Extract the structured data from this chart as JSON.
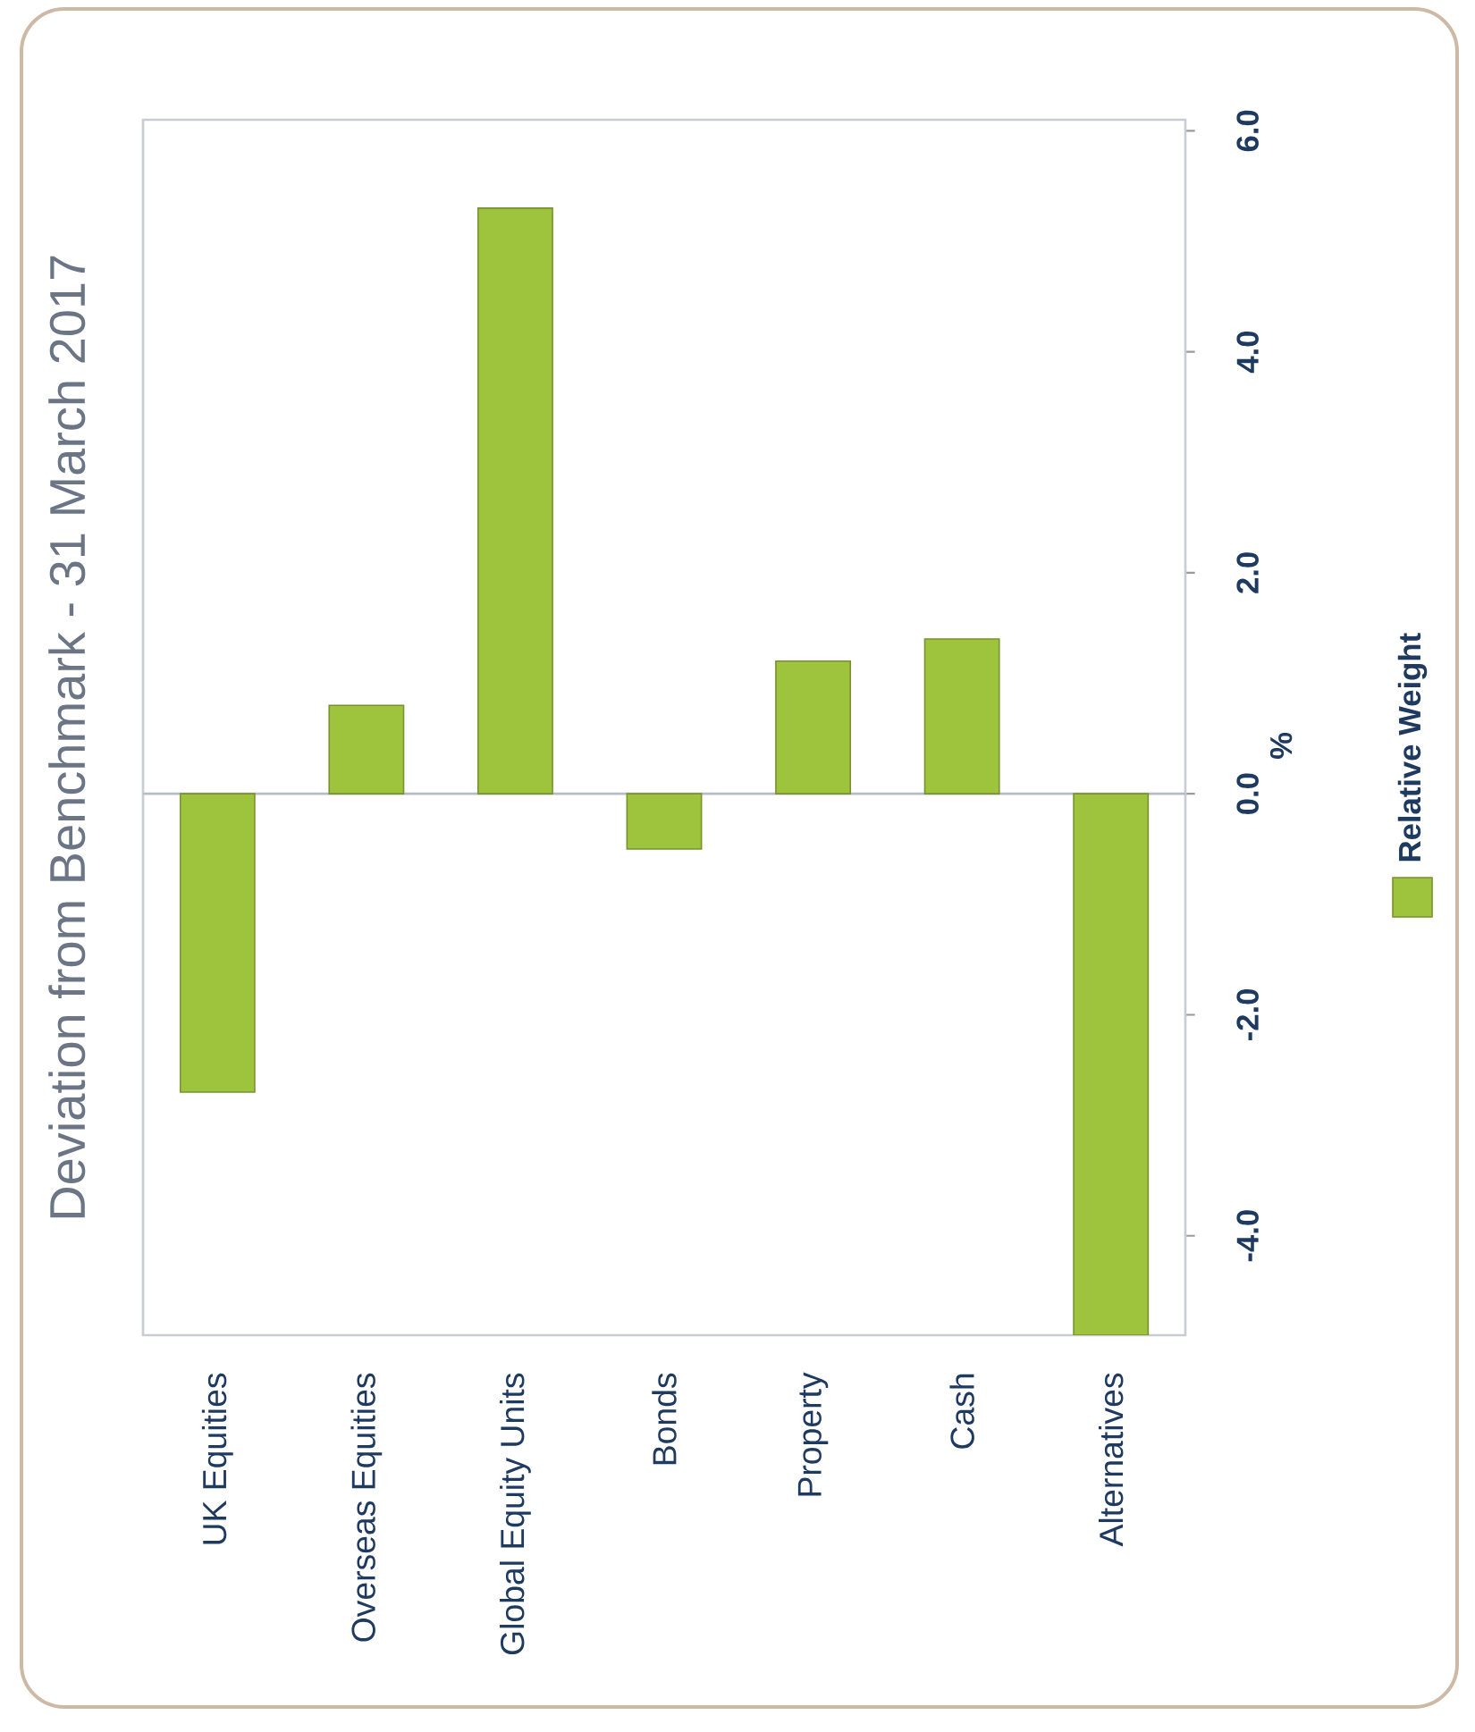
{
  "chart_data": {
    "type": "bar",
    "title": "Deviation from Benchmark - 31 March 2017",
    "categories": [
      "UK Equities",
      "Overseas Equities",
      "Global Equity Units",
      "Bonds",
      "Property",
      "Cash",
      "Alternatives"
    ],
    "series": [
      {
        "name": "Relative Weight",
        "color": "#9dc43c",
        "values": [
          -2.7,
          0.8,
          5.3,
          -0.5,
          1.2,
          1.4,
          -4.9
        ]
      }
    ],
    "ylabel": "%",
    "ylim": [
      -4.9,
      6.1
    ],
    "yticks": [
      {
        "value": -4,
        "label": "-4.0"
      },
      {
        "value": -2,
        "label": "-2.0"
      },
      {
        "value": 0,
        "label": "0.0"
      },
      {
        "value": 2,
        "label": "2.0"
      },
      {
        "value": 4,
        "label": "4.0"
      },
      {
        "value": 6,
        "label": "6.0"
      }
    ],
    "ref_lines": [
      {
        "axis": "y",
        "value": 0,
        "color": "#b8bcc8"
      }
    ],
    "legend": "right"
  }
}
